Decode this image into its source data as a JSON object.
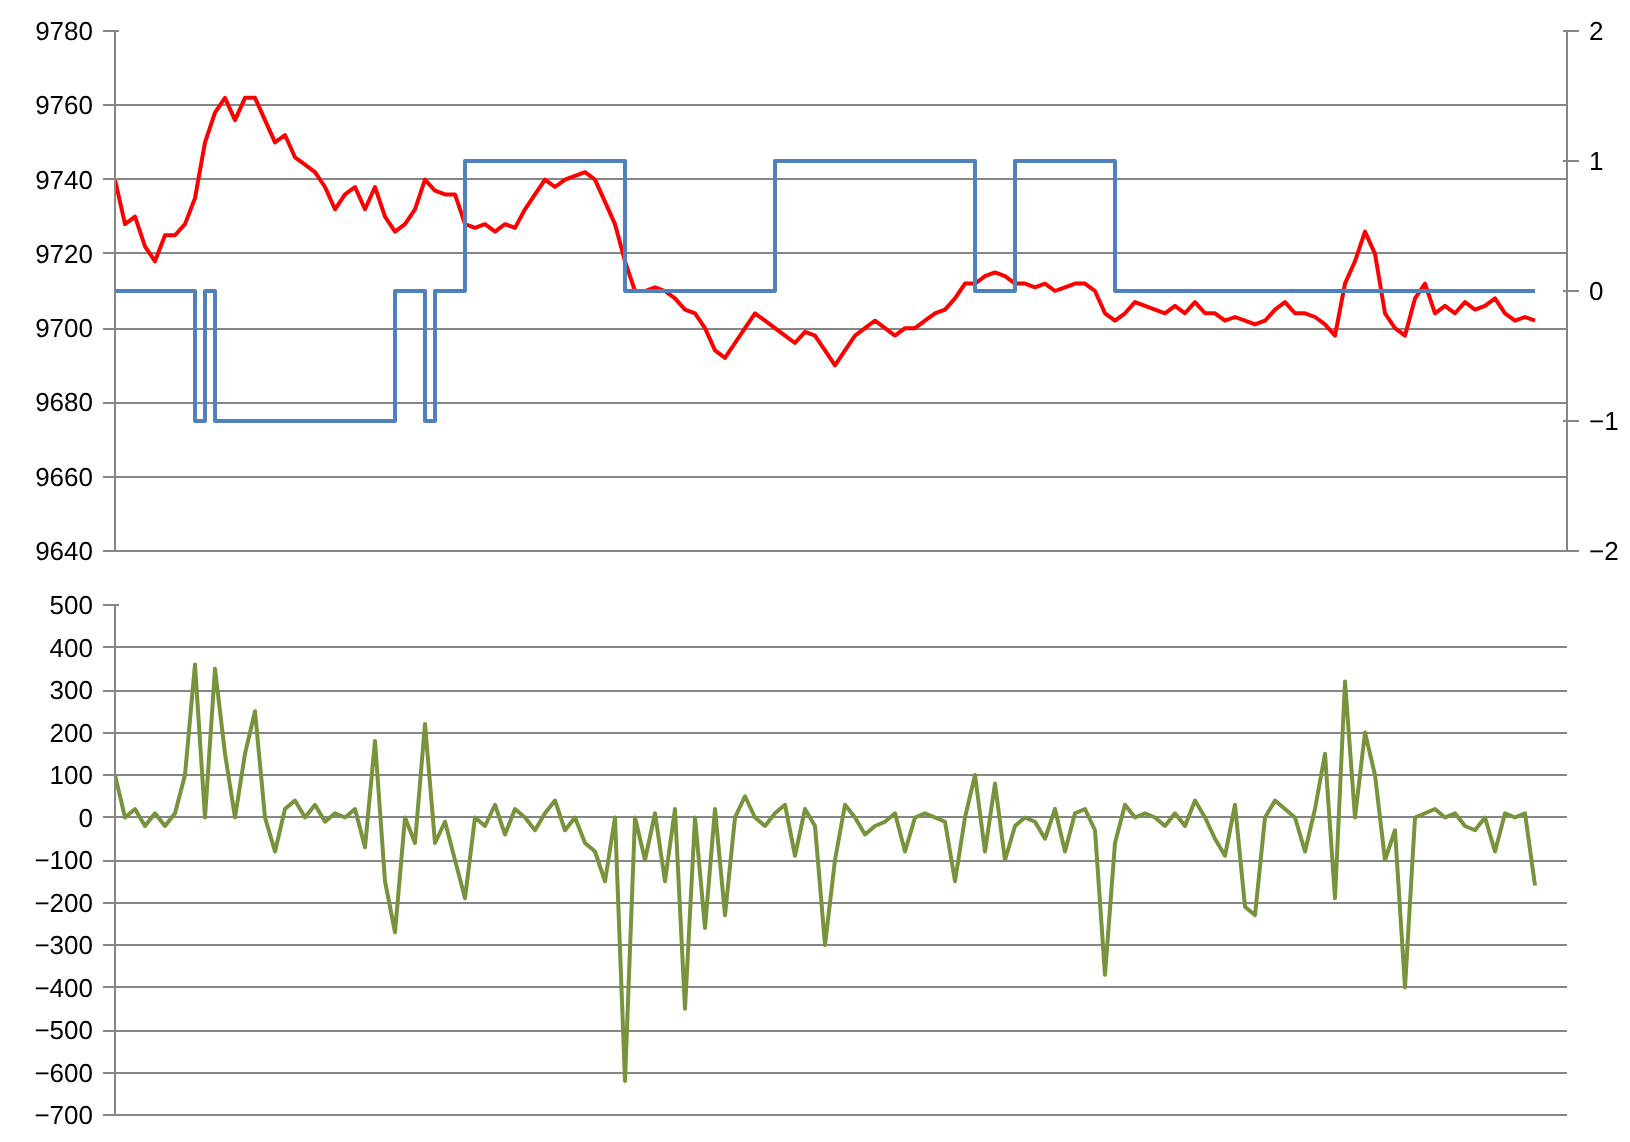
{
  "chart_data": [
    {
      "type": "line",
      "categories": [
        null,
        null,
        null,
        null,
        null,
        null,
        null,
        null,
        null,
        null,
        null,
        null,
        null,
        null,
        null,
        null,
        null,
        null,
        null,
        null,
        null,
        null,
        null,
        null,
        null,
        null,
        null,
        null,
        null,
        null,
        null,
        null,
        null,
        null,
        null,
        null,
        null,
        null,
        null,
        null,
        null,
        null,
        null,
        null,
        null,
        null,
        null,
        null,
        null,
        null,
        null,
        null,
        null,
        null,
        null,
        null,
        null,
        null,
        null,
        null,
        null,
        null,
        null,
        null,
        null,
        null,
        null,
        null,
        null,
        null,
        null,
        null,
        null,
        null,
        null,
        null,
        null,
        null,
        null,
        null,
        null,
        null,
        null,
        null,
        null,
        null,
        null,
        null,
        null,
        null,
        null,
        null,
        null,
        null,
        null,
        null,
        null,
        null,
        null,
        null,
        null,
        null,
        null,
        null,
        null,
        null,
        null,
        null,
        null,
        null,
        null,
        null,
        null,
        null,
        null,
        null,
        null,
        null,
        null,
        null,
        null,
        null,
        null,
        null,
        null,
        null,
        null,
        null,
        null,
        null,
        null,
        null,
        null,
        null,
        null,
        null,
        null,
        null,
        null,
        null,
        null,
        null,
        null
      ],
      "series": [
        {
          "color": "#ff0000",
          "values": [
            9740,
            9728,
            9730,
            9722,
            9718,
            9725,
            9725,
            9728,
            9735,
            9750,
            9758,
            9762,
            9756,
            9762,
            9762,
            9756,
            9750,
            9752,
            9746,
            9744,
            9742,
            9738,
            9732,
            9736,
            9738,
            9732,
            9738,
            9730,
            9726,
            9728,
            9732,
            9740,
            9737,
            9736,
            9736,
            9728,
            9727,
            9728,
            9726,
            9728,
            9727,
            9732,
            9736,
            9740,
            9738,
            9740,
            9741,
            9742,
            9740,
            9734,
            9728,
            9718,
            9710,
            9710,
            9711,
            9710,
            9708,
            9705,
            9704,
            9700,
            9694,
            9692,
            9696,
            9700,
            9704,
            9702,
            9700,
            9698,
            9696,
            9699,
            9698,
            9694,
            9690,
            9694,
            9698,
            9700,
            9702,
            9700,
            9698,
            9700,
            9700,
            9702,
            9704,
            9705,
            9708,
            9712,
            9712,
            9714,
            9715,
            9714,
            9712,
            9712,
            9711,
            9712,
            9710,
            9711,
            9712,
            9712,
            9710,
            9704,
            9702,
            9704,
            9707,
            9706,
            9705,
            9704,
            9706,
            9704,
            9707,
            9704,
            9704,
            9702,
            9703,
            9702,
            9701,
            9702,
            9705,
            9707,
            9704,
            9704,
            9703,
            9701,
            9698,
            9712,
            9718,
            9726,
            9720,
            9704,
            9700,
            9698,
            9708,
            9712,
            9704,
            9706,
            9704,
            9707,
            9705,
            9706,
            9708,
            9704,
            9702,
            9703,
            9702
          ]
        },
        {
          "type": "step",
          "axis": "y2",
          "color": "#4f81bd",
          "values": [
            0,
            0,
            0,
            0,
            0,
            0,
            0,
            0,
            -1,
            0,
            -1,
            -1,
            -1,
            -1,
            -1,
            -1,
            -1,
            -1,
            -1,
            -1,
            -1,
            -1,
            -1,
            -1,
            -1,
            -1,
            -1,
            -1,
            0,
            0,
            0,
            -1,
            0,
            0,
            0,
            1,
            1,
            1,
            1,
            1,
            1,
            1,
            1,
            1,
            1,
            1,
            1,
            1,
            1,
            1,
            1,
            0,
            0,
            0,
            0,
            0,
            0,
            0,
            0,
            0,
            0,
            0,
            0,
            0,
            0,
            0,
            1,
            1,
            1,
            1,
            1,
            1,
            1,
            1,
            1,
            1,
            1,
            1,
            1,
            1,
            1,
            1,
            1,
            1,
            1,
            1,
            0,
            0,
            0,
            0,
            1,
            1,
            1,
            1,
            1,
            1,
            1,
            1,
            1,
            1,
            0,
            0,
            0,
            0,
            0,
            0,
            0,
            0,
            0,
            0,
            0,
            0,
            0,
            0,
            0,
            0,
            0,
            0,
            0,
            0,
            0,
            0,
            0,
            0,
            0,
            0,
            0,
            0,
            0,
            0,
            0,
            0,
            0,
            0,
            0,
            0,
            0,
            0,
            0,
            0,
            0,
            0,
            0
          ]
        }
      ],
      "ylim": [
        9640,
        9780
      ],
      "yticks": [
        9640,
        9660,
        9680,
        9700,
        9720,
        9740,
        9760,
        9780
      ],
      "y2lim": [
        -2,
        2
      ],
      "y2ticks": [
        -2,
        -1,
        0,
        1,
        2
      ],
      "grid": "y"
    },
    {
      "type": "line",
      "categories": [
        null,
        null,
        null,
        null,
        null,
        null,
        null,
        null,
        null,
        null,
        null,
        null,
        null,
        null,
        null,
        null,
        null,
        null,
        null,
        null,
        null,
        null,
        null,
        null,
        null,
        null,
        null,
        null,
        null,
        null,
        null,
        null,
        null,
        null,
        null,
        null,
        null,
        null,
        null,
        null,
        null,
        null,
        null,
        null,
        null,
        null,
        null,
        null,
        null,
        null,
        null,
        null,
        null,
        null,
        null,
        null,
        null,
        null,
        null,
        null,
        null,
        null,
        null,
        null,
        null,
        null,
        null,
        null,
        null,
        null,
        null,
        null,
        null,
        null,
        null,
        null,
        null,
        null,
        null,
        null,
        null,
        null,
        null,
        null,
        null,
        null,
        null,
        null,
        null,
        null,
        null,
        null,
        null,
        null,
        null,
        null,
        null,
        null,
        null,
        null,
        null,
        null,
        null,
        null,
        null,
        null,
        null,
        null,
        null,
        null,
        null,
        null,
        null,
        null,
        null,
        null,
        null,
        null,
        null,
        null,
        null,
        null,
        null,
        null,
        null,
        null,
        null,
        null,
        null,
        null,
        null,
        null,
        null,
        null,
        null,
        null,
        null,
        null,
        null,
        null,
        null,
        null,
        null
      ],
      "series": [
        {
          "color": "#77933c",
          "values": [
            100,
            0,
            20,
            -20,
            10,
            -20,
            10,
            100,
            360,
            0,
            350,
            150,
            0,
            150,
            250,
            0,
            -80,
            20,
            40,
            0,
            30,
            -10,
            10,
            0,
            20,
            -70,
            180,
            -150,
            -270,
            0,
            -60,
            220,
            -60,
            -10,
            -100,
            -190,
            0,
            -20,
            30,
            -40,
            20,
            0,
            -30,
            10,
            40,
            -30,
            0,
            -60,
            -80,
            -150,
            0,
            -620,
            0,
            -100,
            10,
            -150,
            20,
            -450,
            0,
            -260,
            20,
            -230,
            0,
            50,
            0,
            -20,
            10,
            30,
            -90,
            20,
            -20,
            -300,
            -100,
            30,
            0,
            -40,
            -20,
            -10,
            10,
            -80,
            0,
            10,
            0,
            -10,
            -150,
            0,
            100,
            -80,
            80,
            -100,
            -20,
            0,
            -10,
            -50,
            20,
            -80,
            10,
            20,
            -30,
            -370,
            -60,
            30,
            0,
            10,
            0,
            -20,
            10,
            -20,
            40,
            0,
            -50,
            -90,
            30,
            -210,
            -230,
            0,
            40,
            20,
            0,
            -80,
            20,
            150,
            -190,
            320,
            0,
            200,
            100,
            -100,
            -30,
            -400,
            0,
            10,
            20,
            0,
            10,
            -20,
            -30,
            0,
            -80,
            10,
            0,
            10,
            -160
          ]
        }
      ],
      "ylim": [
        -700,
        500
      ],
      "yticks": [
        -700,
        -600,
        -500,
        -400,
        -300,
        -200,
        -100,
        0,
        100,
        200,
        300,
        400,
        500
      ],
      "grid": "y"
    }
  ]
}
